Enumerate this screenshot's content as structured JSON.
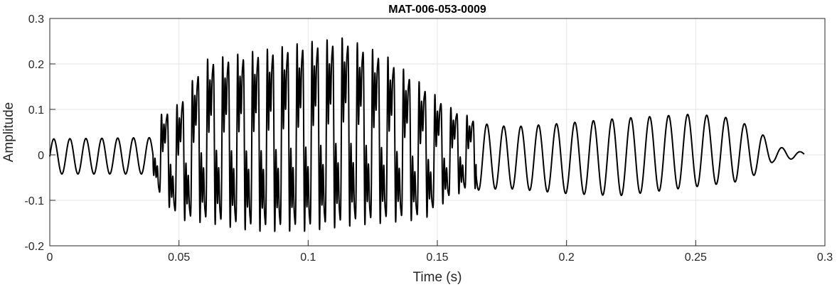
{
  "chart_data": {
    "type": "line",
    "title": "MAT-006-053-0009",
    "xlabel": "Time (s)",
    "ylabel": "Amplitude",
    "xlim": [
      0,
      0.3
    ],
    "ylim": [
      -0.2,
      0.3
    ],
    "xticks": [
      0,
      0.05,
      0.1,
      0.15,
      0.2,
      0.25,
      0.3
    ],
    "xtick_labels": [
      "0",
      "0.05",
      "0.1",
      "0.15",
      "0.2",
      "0.25",
      "0.3"
    ],
    "yticks": [
      -0.2,
      -0.1,
      0,
      0.1,
      0.2,
      0.3
    ],
    "ytick_labels": [
      "-0.2",
      "-0.1",
      "0",
      "0.1",
      "0.2",
      "0.3"
    ],
    "grid": true,
    "line_color": "#000000",
    "grid_color": "#e6e6e6",
    "series": [
      {
        "x_start": 0,
        "x_end": 0.292,
        "envelope": {
          "t": [
            0,
            0.04,
            0.042,
            0.05,
            0.06,
            0.08,
            0.1,
            0.114,
            0.13,
            0.145,
            0.155,
            0.162,
            0.17,
            0.18,
            0.2,
            0.22,
            0.25,
            0.265,
            0.275,
            0.28,
            0.292
          ],
          "upper": [
            0.035,
            0.038,
            0.09,
            0.12,
            0.22,
            0.24,
            0.26,
            0.27,
            0.23,
            0.16,
            0.11,
            0.09,
            0.065,
            0.062,
            0.07,
            0.08,
            0.09,
            0.08,
            0.05,
            0.02,
            0.005
          ],
          "lower": [
            -0.042,
            -0.042,
            -0.09,
            -0.15,
            -0.16,
            -0.18,
            -0.18,
            -0.17,
            -0.16,
            -0.15,
            -0.1,
            -0.08,
            -0.075,
            -0.075,
            -0.085,
            -0.09,
            -0.07,
            -0.06,
            -0.04,
            -0.015,
            -0.005
          ]
        },
        "f0_hz": [
          160,
          165,
          175,
          170,
          160,
          140,
          135,
          140
        ],
        "f0_t": [
          0,
          0.04,
          0.08,
          0.12,
          0.16,
          0.2,
          0.25,
          0.292
        ]
      }
    ]
  }
}
